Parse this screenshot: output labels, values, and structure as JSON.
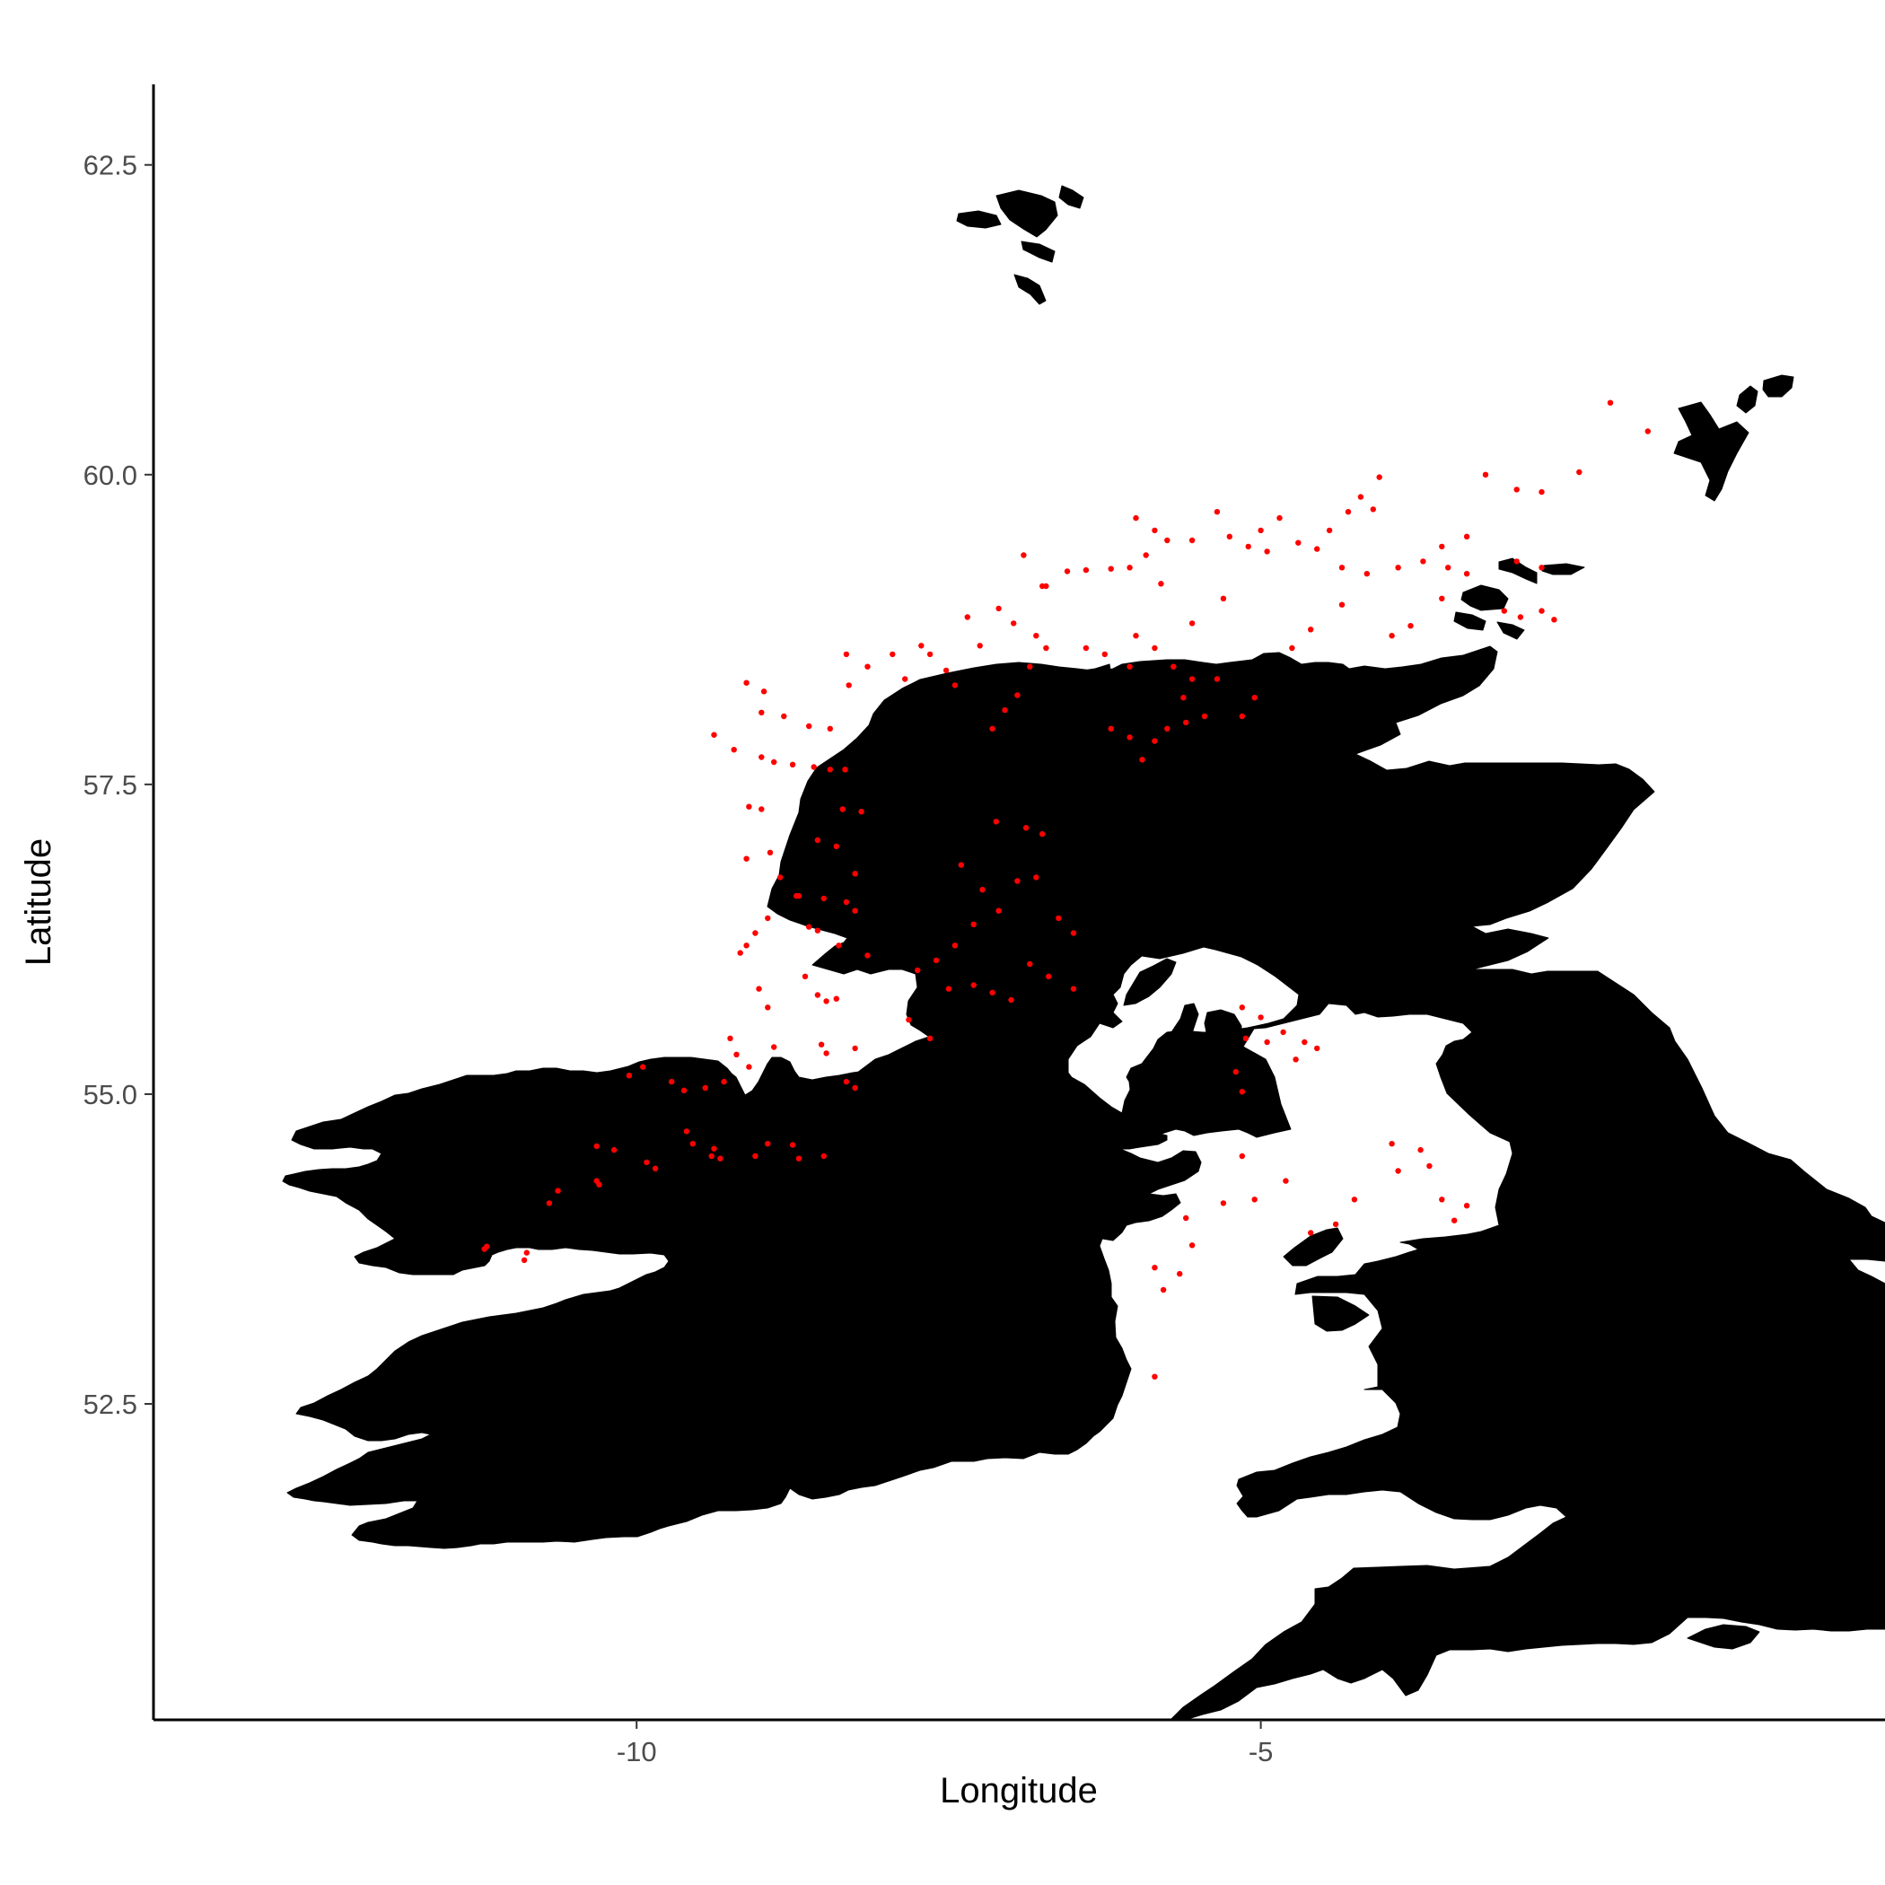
{
  "chart_data": {
    "type": "scatter",
    "title": "",
    "xlabel": "Longitude",
    "ylabel": "Latitude",
    "xlim": [
      -13.87,
      0.0
    ],
    "ylim": [
      49.95,
      63.15
    ],
    "x_ticks": [
      -10,
      -5
    ],
    "x_tick_labels": [
      "-10",
      "-5"
    ],
    "y_ticks": [
      52.5,
      55.0,
      57.5,
      60.0,
      62.5
    ],
    "y_tick_labels": [
      "52.5",
      "55.0",
      "57.5",
      "60.0",
      "62.5"
    ],
    "grid": false,
    "legend": "none",
    "land_color": "#000000",
    "point_color": "#ff0000",
    "series": [
      {
        "points": [
          [
            -11.2,
            53.77
          ],
          [
            -11.22,
            53.75
          ],
          [
            -10.88,
            53.72
          ],
          [
            -10.9,
            53.66
          ],
          [
            -10.7,
            54.12
          ],
          [
            -10.63,
            54.22
          ],
          [
            -10.3,
            54.27
          ],
          [
            -10.32,
            54.3
          ],
          [
            -10.32,
            54.58
          ],
          [
            -10.18,
            54.55
          ],
          [
            -9.92,
            54.45
          ],
          [
            -9.85,
            54.4
          ],
          [
            -10.06,
            55.15
          ],
          [
            -9.95,
            55.22
          ],
          [
            -9.72,
            55.1
          ],
          [
            -9.62,
            55.03
          ],
          [
            -9.6,
            54.7
          ],
          [
            -9.55,
            54.6
          ],
          [
            -9.4,
            54.5
          ],
          [
            -9.33,
            54.48
          ],
          [
            -9.38,
            54.56
          ],
          [
            -9.45,
            55.05
          ],
          [
            -9.3,
            55.1
          ],
          [
            -9.1,
            55.22
          ],
          [
            -9.25,
            55.45
          ],
          [
            -9.2,
            55.32
          ],
          [
            -8.9,
            55.38
          ],
          [
            -9.05,
            54.5
          ],
          [
            -8.95,
            54.6
          ],
          [
            -8.75,
            54.59
          ],
          [
            -8.7,
            54.48
          ],
          [
            -8.5,
            54.5
          ],
          [
            -9.02,
            55.85
          ],
          [
            -8.95,
            55.7
          ],
          [
            -9.12,
            56.2
          ],
          [
            -9.17,
            56.14
          ],
          [
            -9.05,
            56.3
          ],
          [
            -8.95,
            56.42
          ],
          [
            -8.72,
            56.6
          ],
          [
            -8.62,
            56.35
          ],
          [
            -8.55,
            56.32
          ],
          [
            -8.65,
            55.95
          ],
          [
            -8.55,
            55.8
          ],
          [
            -8.48,
            55.75
          ],
          [
            -8.4,
            55.77
          ],
          [
            -8.52,
            55.4
          ],
          [
            -8.48,
            55.33
          ],
          [
            -8.25,
            55.37
          ],
          [
            -8.32,
            55.1
          ],
          [
            -8.25,
            55.05
          ],
          [
            -9.1,
            57.32
          ],
          [
            -9.0,
            57.3
          ],
          [
            -9.12,
            56.9
          ],
          [
            -8.93,
            56.95
          ],
          [
            -8.85,
            56.75
          ],
          [
            -8.7,
            56.6
          ],
          [
            -8.5,
            56.58
          ],
          [
            -8.32,
            56.55
          ],
          [
            -8.25,
            56.48
          ],
          [
            -8.38,
            56.2
          ],
          [
            -8.15,
            56.12
          ],
          [
            -9.0,
            57.72
          ],
          [
            -8.9,
            57.68
          ],
          [
            -8.75,
            57.66
          ],
          [
            -8.58,
            57.64
          ],
          [
            -8.45,
            57.62
          ],
          [
            -8.33,
            57.62
          ],
          [
            -8.35,
            57.3
          ],
          [
            -8.2,
            57.28
          ],
          [
            -8.55,
            57.05
          ],
          [
            -8.4,
            57.0
          ],
          [
            -8.25,
            56.78
          ],
          [
            -9.38,
            57.9
          ],
          [
            -9.22,
            57.78
          ],
          [
            -9.0,
            58.08
          ],
          [
            -8.82,
            58.05
          ],
          [
            -8.62,
            57.97
          ],
          [
            -8.45,
            57.95
          ],
          [
            -9.12,
            58.32
          ],
          [
            -8.98,
            58.25
          ],
          [
            -8.3,
            58.3
          ],
          [
            -8.15,
            58.45
          ],
          [
            -8.32,
            58.55
          ],
          [
            -7.95,
            58.55
          ],
          [
            -7.72,
            58.62
          ],
          [
            -7.65,
            58.55
          ],
          [
            -7.52,
            58.42
          ],
          [
            -7.45,
            58.3
          ],
          [
            -7.85,
            58.35
          ],
          [
            -7.4,
            56.85
          ],
          [
            -7.23,
            56.65
          ],
          [
            -7.1,
            56.48
          ],
          [
            -7.3,
            56.37
          ],
          [
            -7.45,
            56.2
          ],
          [
            -7.6,
            56.08
          ],
          [
            -7.75,
            56.0
          ],
          [
            -7.82,
            55.6
          ],
          [
            -7.65,
            55.45
          ],
          [
            -7.5,
            55.85
          ],
          [
            -7.3,
            55.88
          ],
          [
            -7.15,
            55.82
          ],
          [
            -7.0,
            55.76
          ],
          [
            -7.12,
            57.2
          ],
          [
            -6.88,
            57.15
          ],
          [
            -6.75,
            57.1
          ],
          [
            -6.95,
            56.72
          ],
          [
            -6.8,
            56.75
          ],
          [
            -6.62,
            56.42
          ],
          [
            -6.5,
            56.3
          ],
          [
            -6.85,
            56.05
          ],
          [
            -6.7,
            55.95
          ],
          [
            -6.5,
            55.85
          ],
          [
            -7.15,
            57.95
          ],
          [
            -7.05,
            58.1
          ],
          [
            -6.95,
            58.22
          ],
          [
            -6.85,
            58.45
          ],
          [
            -6.72,
            58.6
          ],
          [
            -6.8,
            58.7
          ],
          [
            -6.98,
            58.8
          ],
          [
            -7.1,
            58.92
          ],
          [
            -7.35,
            58.85
          ],
          [
            -7.25,
            58.62
          ],
          [
            -6.72,
            59.1
          ],
          [
            -6.55,
            59.22
          ],
          [
            -6.4,
            59.23
          ],
          [
            -6.2,
            59.24
          ],
          [
            -6.05,
            59.25
          ],
          [
            -6.4,
            58.6
          ],
          [
            -6.25,
            58.55
          ],
          [
            -6.05,
            58.45
          ],
          [
            -6.0,
            58.7
          ],
          [
            -5.85,
            58.6
          ],
          [
            -5.7,
            58.45
          ],
          [
            -5.55,
            58.35
          ],
          [
            -5.62,
            58.2
          ],
          [
            -5.45,
            58.05
          ],
          [
            -5.6,
            58.0
          ],
          [
            -5.75,
            57.95
          ],
          [
            -5.85,
            57.85
          ],
          [
            -5.95,
            57.7
          ],
          [
            -6.05,
            57.88
          ],
          [
            -6.2,
            57.95
          ],
          [
            -6.0,
            59.65
          ],
          [
            -5.85,
            59.55
          ],
          [
            -5.75,
            59.47
          ],
          [
            -5.55,
            59.47
          ],
          [
            -5.35,
            59.7
          ],
          [
            -5.25,
            59.5
          ],
          [
            -5.1,
            59.42
          ],
          [
            -4.95,
            59.38
          ],
          [
            -5.0,
            59.55
          ],
          [
            -4.85,
            59.65
          ],
          [
            -4.7,
            59.45
          ],
          [
            -4.55,
            59.4
          ],
          [
            -4.45,
            59.55
          ],
          [
            -4.3,
            59.7
          ],
          [
            -4.2,
            59.82
          ],
          [
            -4.1,
            59.72
          ],
          [
            -4.05,
            59.98
          ],
          [
            -4.35,
            59.25
          ],
          [
            -4.15,
            59.2
          ],
          [
            -3.9,
            59.25
          ],
          [
            -3.7,
            59.3
          ],
          [
            -3.5,
            59.25
          ],
          [
            -3.35,
            59.2
          ],
          [
            -3.55,
            59.42
          ],
          [
            -3.35,
            59.5
          ],
          [
            -3.2,
            60.0
          ],
          [
            -2.95,
            59.88
          ],
          [
            -2.75,
            59.86
          ],
          [
            -2.45,
            60.02
          ],
          [
            -2.2,
            60.58
          ],
          [
            -1.9,
            60.35
          ],
          [
            -2.75,
            59.25
          ],
          [
            -2.95,
            59.3
          ],
          [
            -3.05,
            58.9
          ],
          [
            -2.92,
            58.85
          ],
          [
            -2.75,
            58.9
          ],
          [
            -2.65,
            58.83
          ],
          [
            -3.55,
            59.0
          ],
          [
            -3.8,
            58.78
          ],
          [
            -3.95,
            58.7
          ],
          [
            -4.35,
            58.95
          ],
          [
            -4.6,
            58.75
          ],
          [
            -4.75,
            58.6
          ],
          [
            -5.05,
            58.2
          ],
          [
            -5.15,
            58.05
          ],
          [
            -5.35,
            58.35
          ],
          [
            -5.55,
            58.8
          ],
          [
            -5.3,
            59.0
          ],
          [
            -5.8,
            59.12
          ],
          [
            -5.92,
            59.35
          ],
          [
            -6.75,
            59.1
          ],
          [
            -6.9,
            59.35
          ],
          [
            -5.6,
            54.0
          ],
          [
            -5.3,
            54.12
          ],
          [
            -5.15,
            54.5
          ],
          [
            -5.05,
            54.15
          ],
          [
            -4.8,
            54.3
          ],
          [
            -4.6,
            53.88
          ],
          [
            -4.4,
            53.95
          ],
          [
            -4.25,
            54.15
          ],
          [
            -3.95,
            54.6
          ],
          [
            -3.9,
            54.38
          ],
          [
            -3.72,
            54.55
          ],
          [
            -3.65,
            54.42
          ],
          [
            -3.55,
            54.15
          ],
          [
            -3.45,
            53.98
          ],
          [
            -3.35,
            54.1
          ],
          [
            -5.65,
            53.55
          ],
          [
            -5.78,
            53.42
          ],
          [
            -5.85,
            53.6
          ],
          [
            -5.55,
            53.78
          ],
          [
            -5.85,
            52.72
          ],
          [
            -5.15,
            55.7
          ],
          [
            -5.0,
            55.62
          ],
          [
            -5.12,
            55.45
          ],
          [
            -5.2,
            55.18
          ],
          [
            -5.15,
            55.02
          ],
          [
            -4.95,
            55.42
          ],
          [
            -4.82,
            55.5
          ],
          [
            -4.65,
            55.42
          ],
          [
            -4.55,
            55.37
          ],
          [
            -4.72,
            55.28
          ]
        ]
      }
    ]
  }
}
